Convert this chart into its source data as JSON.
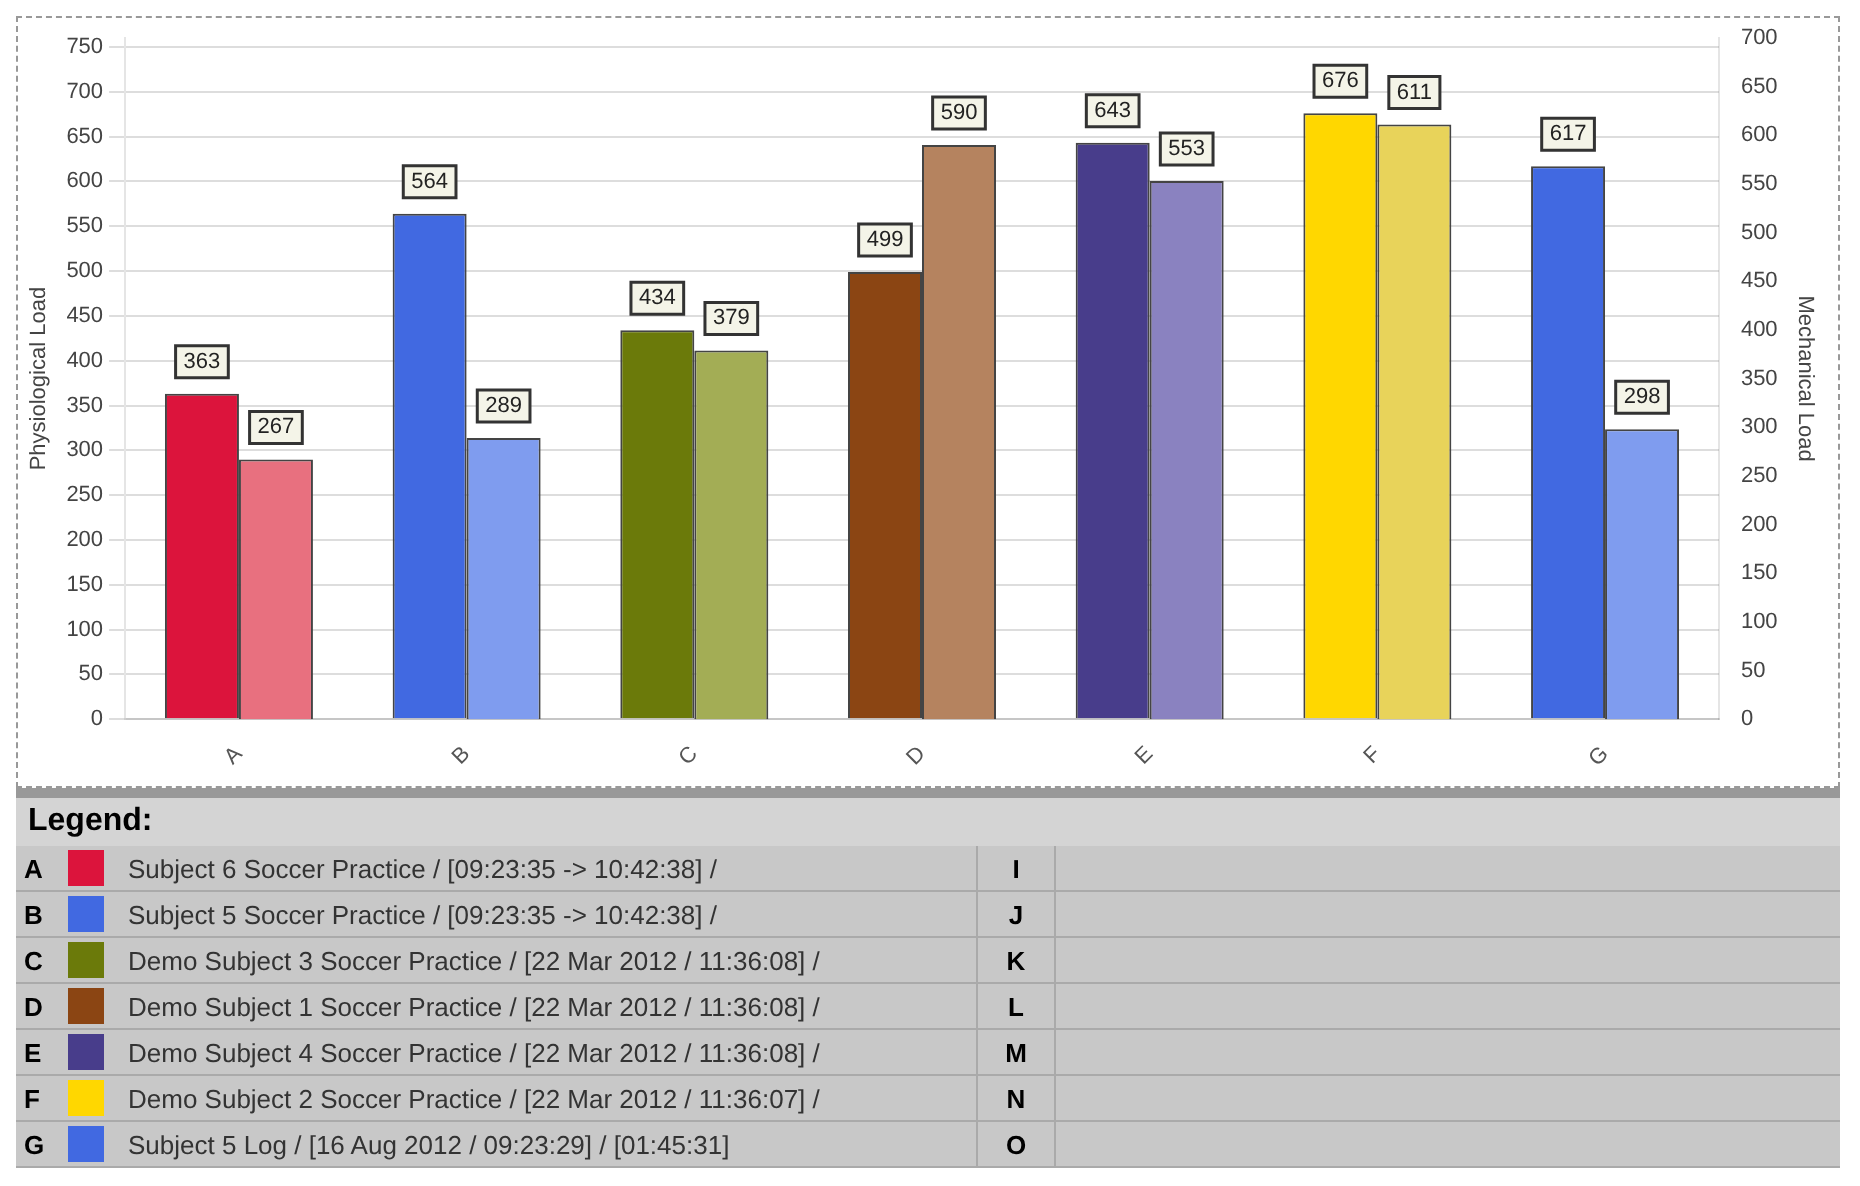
{
  "chart_data": {
    "type": "bar",
    "ylabel": "Physiological Load",
    "y2label": "Mechanical Load",
    "legend_title": "Legend:",
    "categories": [
      "A",
      "B",
      "C",
      "D",
      "E",
      "F",
      "G"
    ],
    "series": [
      {
        "colors": [
          "#dc143c",
          "#4169e1",
          "#6b7a0a",
          "#8b4513",
          "#483d8b",
          "#ffd700",
          "#4169e1"
        ],
        "values": [
          363,
          564,
          434,
          499,
          643,
          676,
          617
        ]
      },
      {
        "axis": "y2",
        "colors": [
          "#e8707f",
          "#7f9cef",
          "#a3ad55",
          "#b5835f",
          "#8a82c0",
          "#e8d35a",
          "#7f9cef"
        ],
        "values": [
          267,
          289,
          379,
          590,
          553,
          611,
          298
        ]
      }
    ],
    "ylim": [
      0,
      760
    ],
    "yticks": [
      0,
      50,
      100,
      150,
      200,
      250,
      300,
      350,
      400,
      450,
      500,
      550,
      600,
      650,
      700,
      750
    ],
    "y2lim": [
      0,
      700
    ],
    "y2ticks": [
      0,
      50,
      100,
      150,
      200,
      250,
      300,
      350,
      400,
      450,
      500,
      550,
      600,
      650,
      700
    ],
    "grid": "y",
    "data_labels": true,
    "annotations": [
      "Subject 6 Soccer Practice / [09:23:35 -> 10:42:38] /",
      "Subject 5 Soccer Practice / [09:23:35 -> 10:42:38] /",
      "Demo Subject 3 Soccer Practice / [22 Mar 2012 / 11:36:08] /",
      "Demo Subject 1 Soccer Practice / [22 Mar 2012 / 11:36:08] /",
      "Demo Subject 4 Soccer Practice / [22 Mar 2012 / 11:36:08] /",
      "Demo Subject 2 Soccer Practice / [22 Mar 2012 / 11:36:07] /",
      "Subject 5 Log / [16 Aug 2012 / 09:23:29] / [01:45:31]",
      "I",
      "J",
      "K",
      "L",
      "M",
      "N",
      "O"
    ]
  }
}
